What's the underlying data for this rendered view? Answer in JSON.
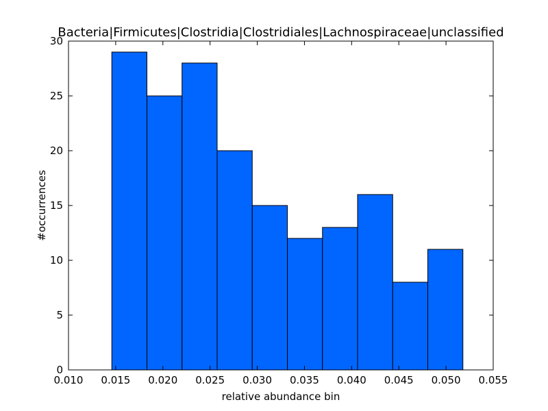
{
  "chart_data": {
    "type": "bar",
    "subtype": "histogram",
    "title": "Bacteria|Firmicutes|Clostridia|Clostridiales|Lachnospiraceae|unclassified",
    "xlabel": "relative abundance bin",
    "ylabel": "#occurrences",
    "xlim": [
      0.01,
      0.055
    ],
    "ylim": [
      0,
      30
    ],
    "x_ticks": [
      "0.010",
      "0.015",
      "0.020",
      "0.025",
      "0.030",
      "0.035",
      "0.040",
      "0.045",
      "0.050",
      "0.055"
    ],
    "y_ticks": [
      "0",
      "5",
      "10",
      "15",
      "20",
      "25",
      "30"
    ],
    "bin_edges": [
      0.01459,
      0.01831,
      0.02203,
      0.02575,
      0.02947,
      0.03319,
      0.03691,
      0.04063,
      0.04435,
      0.04807,
      0.05179
    ],
    "values": [
      29,
      25,
      28,
      20,
      15,
      12,
      13,
      16,
      8,
      11
    ],
    "bar_color": "#0066ff",
    "edge_color": "#000000",
    "grid": false,
    "legend": "none"
  }
}
